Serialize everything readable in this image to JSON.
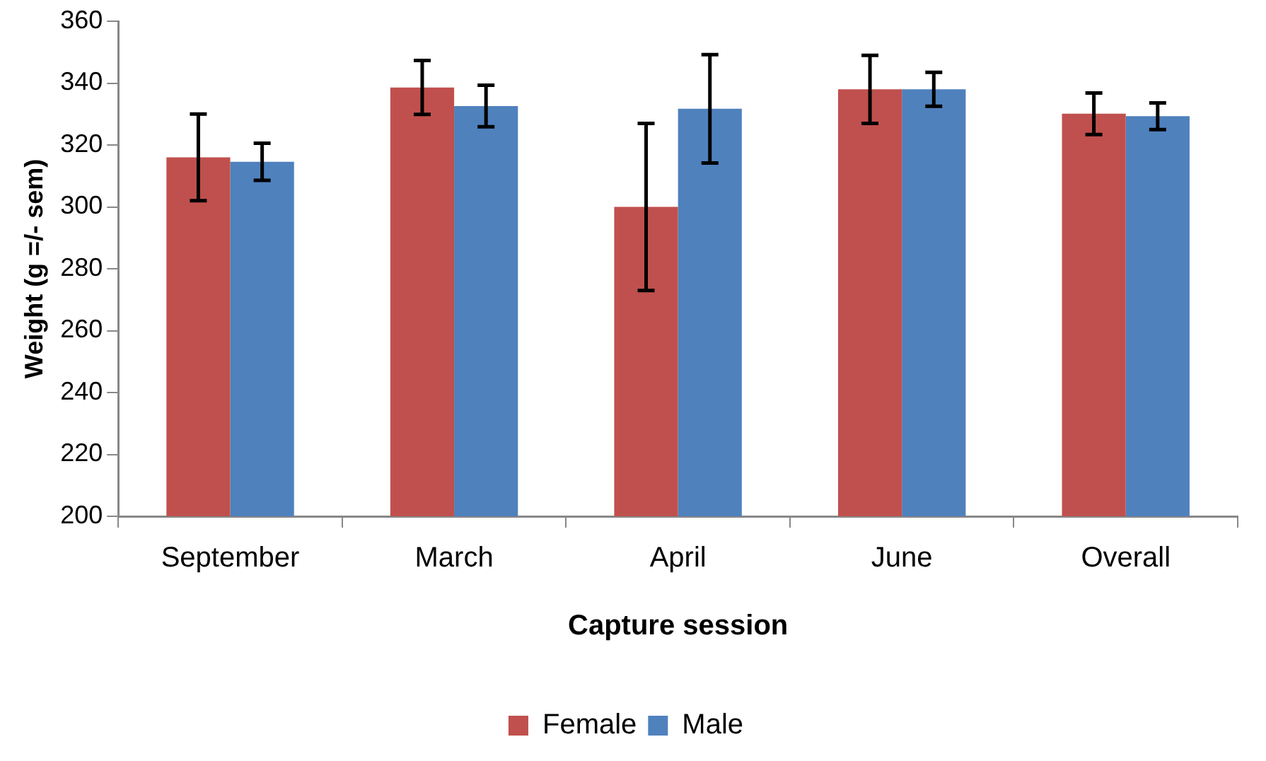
{
  "chart_data": {
    "type": "bar",
    "xlabel": "Capture session",
    "ylabel": "Weight (g =/- sem)",
    "categories": [
      "September",
      "March",
      "April",
      "June",
      "Overall"
    ],
    "series": [
      {
        "name": "Female",
        "color": "#c0504d",
        "values": [
          316,
          338.6,
          300,
          338,
          330.1
        ],
        "errors": [
          14,
          8.7,
          27,
          11,
          6.7
        ]
      },
      {
        "name": "Male",
        "color": "#4f81bd",
        "values": [
          314.6,
          332.6,
          331.7,
          338,
          329.3
        ],
        "errors": [
          6,
          6.7,
          17.5,
          5.5,
          4.3
        ]
      }
    ],
    "ylim": [
      200,
      360
    ],
    "yticks": [
      200,
      220,
      240,
      260,
      280,
      300,
      320,
      340,
      360
    ],
    "grid": false,
    "legend": "bottom"
  }
}
